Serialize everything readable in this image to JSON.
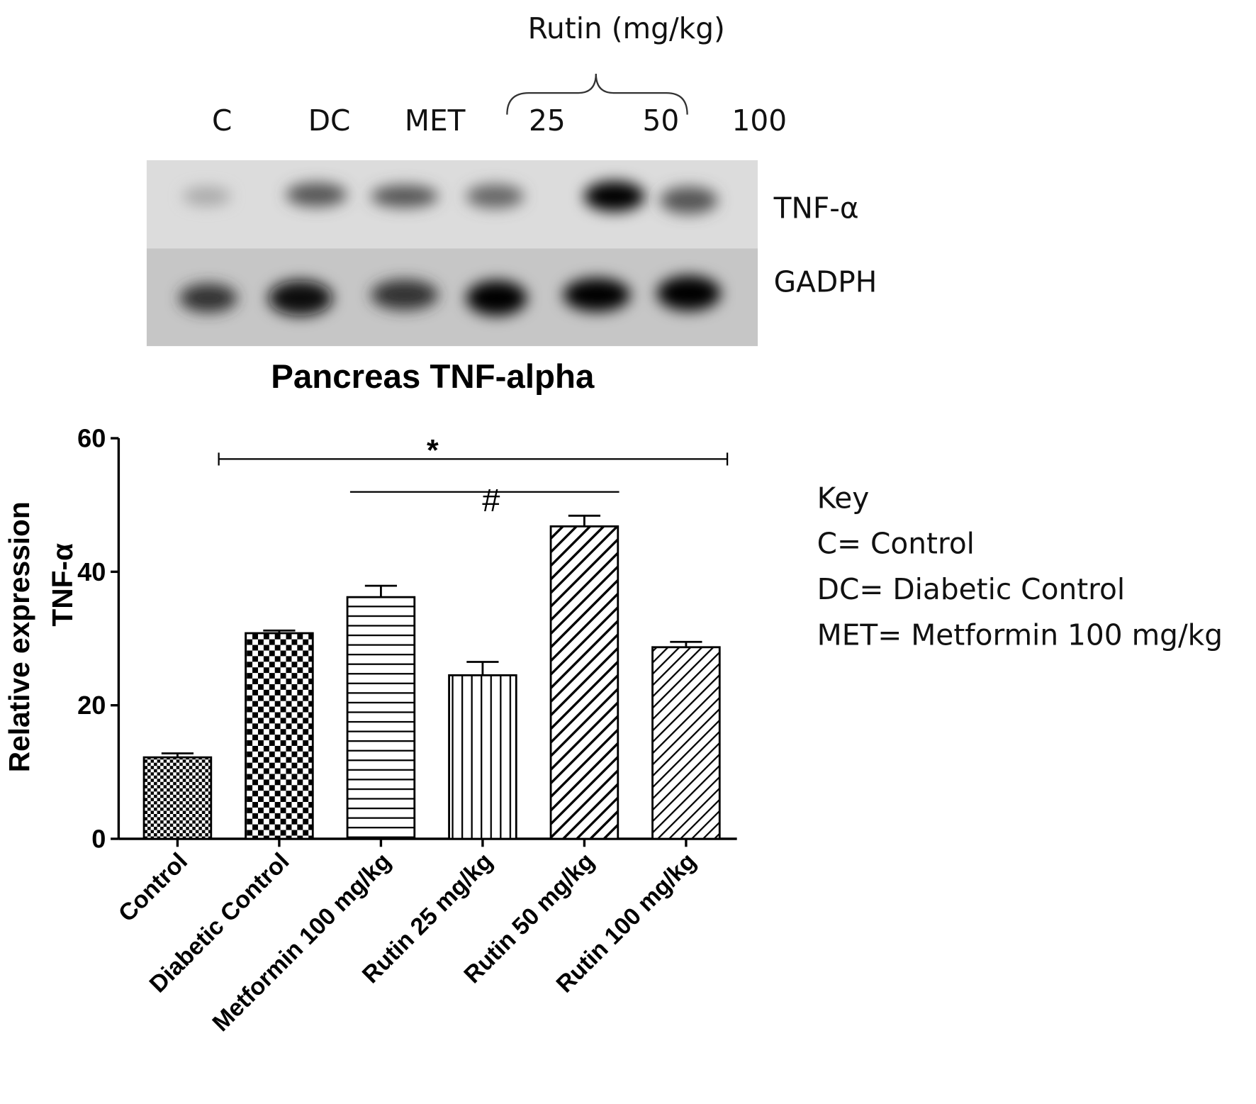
{
  "blot": {
    "group_label": "Rutin (mg/kg)",
    "lanes": [
      "C",
      "DC",
      "MET",
      "25",
      "50",
      "100"
    ],
    "proteins": [
      "TNF-α",
      "GADPH"
    ],
    "caption": "Pancreas TNF-alpha"
  },
  "chart_data": {
    "type": "bar",
    "y_label": [
      "Relative expression",
      "TNF-α"
    ],
    "categories": [
      "Control",
      "Diabetic Control",
      "Metformin 100 mg/kg",
      "Rutin 25 mg/kg",
      "Rutin 50 mg/kg",
      "Rutin 100 mg/kg"
    ],
    "values": [
      12.2,
      30.8,
      36.2,
      24.5,
      46.8,
      28.7
    ],
    "errors": [
      0.6,
      0.4,
      1.7,
      2.0,
      1.6,
      0.8
    ],
    "color": "#000000",
    "ylim": [
      0,
      60
    ],
    "yticks": [
      0,
      20,
      40,
      60
    ],
    "annotations": [
      "*",
      "#"
    ]
  },
  "key": {
    "title": "Key",
    "items": [
      "C= Control",
      "DC= Diabetic Control",
      "MET= Metformin 100 mg/kg"
    ]
  }
}
